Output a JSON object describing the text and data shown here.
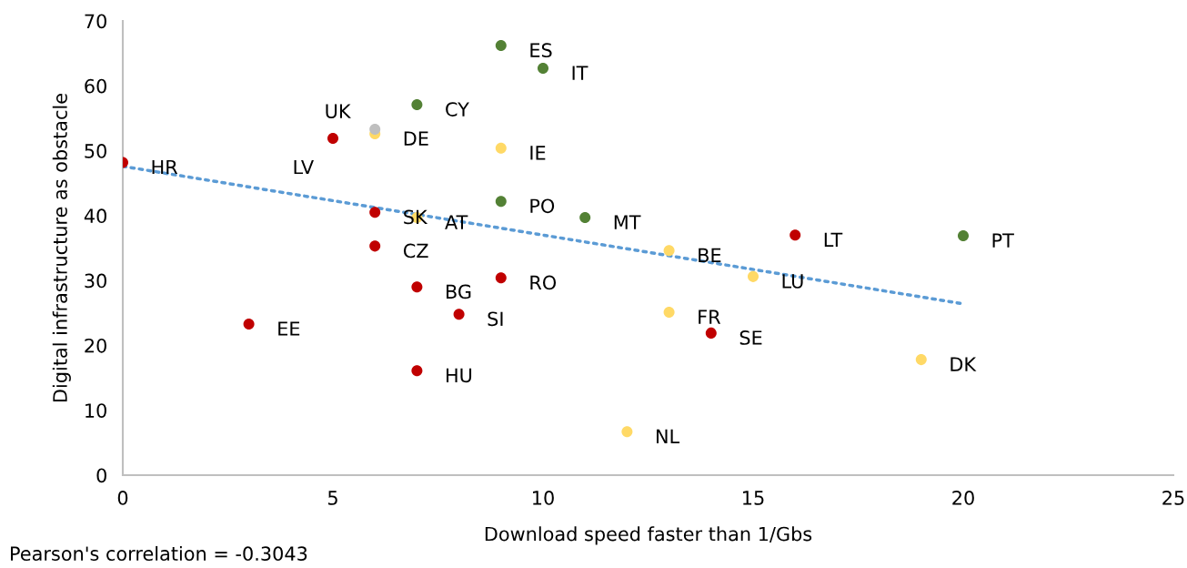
{
  "chart_data": {
    "type": "scatter",
    "xlabel": "Download speed faster than 1/Gbs",
    "ylabel": "Digital infrastructure as obstacle",
    "xlim": [
      0,
      25
    ],
    "xticks": [
      0,
      5,
      10,
      15,
      20,
      25
    ],
    "ylim": [
      0,
      70
    ],
    "yticks": [
      0,
      10,
      20,
      30,
      40,
      50,
      60,
      70
    ],
    "grid": false,
    "marker": "circle",
    "series": [
      {
        "color": "#c00000",
        "x": [
          0,
          5,
          6,
          6,
          7,
          9,
          8,
          3,
          7,
          16,
          14
        ],
        "values": [
          48.2,
          51.9,
          40.5,
          35.3,
          29.0,
          30.4,
          24.8,
          23.3,
          16.1,
          37.0,
          21.9
        ]
      },
      {
        "color": "#538135",
        "x": [
          9,
          10,
          7,
          9,
          11,
          20
        ],
        "values": [
          66.2,
          62.7,
          57.1,
          42.2,
          39.7,
          36.9
        ]
      },
      {
        "color": "#ffd966",
        "x": [
          6,
          9,
          7,
          13,
          15,
          13,
          19,
          12
        ],
        "values": [
          52.6,
          50.4,
          39.7,
          34.6,
          30.6,
          25.1,
          17.8,
          6.7
        ]
      },
      {
        "color": "#bfbfbf",
        "x": [
          6
        ],
        "values": [
          53.3
        ]
      },
      {
        "type": "line",
        "color": "#5b9bd5",
        "line_style": "dotted",
        "marker": "none",
        "x": [
          0,
          20
        ],
        "values": [
          47.6,
          26.4
        ]
      }
    ],
    "annotations": [
      {
        "text": "HR",
        "x": 0,
        "y": 48.2
      },
      {
        "text": "LV",
        "x": 5,
        "y": 51.9
      },
      {
        "text": "SK",
        "x": 6,
        "y": 40.5
      },
      {
        "text": "CZ",
        "x": 6,
        "y": 35.3
      },
      {
        "text": "BG",
        "x": 7,
        "y": 29.0
      },
      {
        "text": "RO",
        "x": 9,
        "y": 30.4
      },
      {
        "text": "SI",
        "x": 8,
        "y": 24.8
      },
      {
        "text": "EE",
        "x": 3,
        "y": 23.3
      },
      {
        "text": "HU",
        "x": 7,
        "y": 16.1
      },
      {
        "text": "LT",
        "x": 16,
        "y": 37.0
      },
      {
        "text": "SE",
        "x": 14,
        "y": 21.9
      },
      {
        "text": "ES",
        "x": 9,
        "y": 66.2
      },
      {
        "text": "IT",
        "x": 10,
        "y": 62.7
      },
      {
        "text": "CY",
        "x": 7,
        "y": 57.1
      },
      {
        "text": "PO",
        "x": 9,
        "y": 42.2
      },
      {
        "text": "MT",
        "x": 11,
        "y": 39.7
      },
      {
        "text": "PT",
        "x": 20,
        "y": 36.9
      },
      {
        "text": "DE",
        "x": 6,
        "y": 52.6
      },
      {
        "text": "IE",
        "x": 9,
        "y": 50.4
      },
      {
        "text": "AT",
        "x": 7,
        "y": 39.7
      },
      {
        "text": "BE",
        "x": 13,
        "y": 34.6
      },
      {
        "text": "LU",
        "x": 15,
        "y": 30.6
      },
      {
        "text": "FR",
        "x": 13,
        "y": 25.1
      },
      {
        "text": "DK",
        "x": 19,
        "y": 17.8
      },
      {
        "text": "NL",
        "x": 12,
        "y": 6.7
      },
      {
        "text": "UK",
        "x": 6,
        "y": 53.3
      },
      "Pearson's correlation = -0.3043"
    ]
  }
}
